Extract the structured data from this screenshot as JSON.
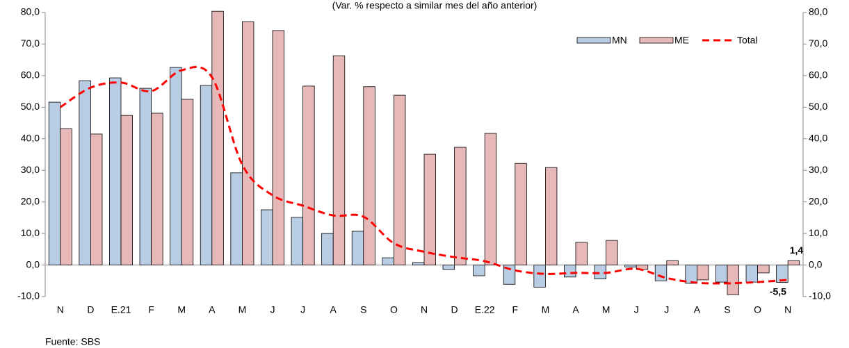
{
  "chart_data": {
    "type": "bar",
    "subtitle": "(Var. % respecto a similar mes del año anterior)",
    "categories": [
      "N",
      "D",
      "E.21",
      "F",
      "M",
      "A",
      "M",
      "J",
      "J",
      "A",
      "S",
      "O",
      "N",
      "D",
      "E.22",
      "F",
      "M",
      "A",
      "M",
      "J",
      "J",
      "A",
      "S",
      "O",
      "N"
    ],
    "series": [
      {
        "name": "MN",
        "type": "bar",
        "color": "#b8cce4",
        "values": [
          51.6,
          58.4,
          59.3,
          56.0,
          62.6,
          56.9,
          29.2,
          17.5,
          15.1,
          10.0,
          10.7,
          2.3,
          0.8,
          -1.4,
          -3.4,
          -6.1,
          -7.0,
          -3.8,
          -4.4,
          -0.6,
          -5.0,
          -5.8,
          -5.4,
          -5.4,
          -5.5
        ],
        "value_labels": [
          null,
          null,
          null,
          null,
          null,
          null,
          null,
          null,
          null,
          null,
          null,
          null,
          null,
          null,
          null,
          null,
          null,
          null,
          null,
          null,
          null,
          null,
          null,
          null,
          "-5,5"
        ]
      },
      {
        "name": "ME",
        "type": "bar",
        "color": "#e6b9b8",
        "values": [
          43.2,
          41.5,
          47.4,
          48.1,
          52.5,
          80.4,
          77.1,
          74.3,
          56.7,
          66.3,
          56.5,
          53.8,
          35.1,
          37.3,
          41.7,
          32.2,
          30.9,
          7.2,
          7.8,
          -1.4,
          1.4,
          -4.7,
          -9.4,
          -2.5,
          1.4
        ],
        "value_labels": [
          null,
          null,
          null,
          null,
          null,
          null,
          null,
          null,
          null,
          null,
          null,
          null,
          null,
          null,
          null,
          null,
          null,
          null,
          null,
          null,
          null,
          null,
          null,
          null,
          "1,4"
        ]
      },
      {
        "name": "Total",
        "type": "line",
        "color": "#ff0000",
        "values": [
          50.0,
          56.2,
          57.8,
          55.1,
          61.7,
          59.5,
          31.8,
          22.1,
          18.8,
          15.7,
          15.3,
          6.9,
          4.2,
          2.5,
          1.2,
          -1.7,
          -2.8,
          -2.5,
          -2.5,
          -1.2,
          -4.1,
          -5.6,
          -5.8,
          -5.4,
          -4.7
        ]
      }
    ],
    "ylim": [
      -10,
      80
    ],
    "yticks": [
      {
        "value": -10,
        "label": "-10,0"
      },
      {
        "value": 0,
        "label": "0,0"
      },
      {
        "value": 10,
        "label": "10,0"
      },
      {
        "value": 20,
        "label": "20,0"
      },
      {
        "value": 30,
        "label": "30,0"
      },
      {
        "value": 40,
        "label": "40,0"
      },
      {
        "value": 50,
        "label": "50,0"
      },
      {
        "value": 60,
        "label": "60,0"
      },
      {
        "value": 70,
        "label": "70,0"
      },
      {
        "value": 80,
        "label": "80,0"
      }
    ],
    "y2lim": [
      -10,
      80
    ],
    "y2ticks": [
      {
        "value": -10,
        "label": "-10,0"
      },
      {
        "value": 0,
        "label": "0,0"
      },
      {
        "value": 10,
        "label": "10,0"
      },
      {
        "value": 20,
        "label": "20,0"
      },
      {
        "value": 30,
        "label": "30,0"
      },
      {
        "value": 40,
        "label": "40,0"
      },
      {
        "value": 50,
        "label": "50,0"
      },
      {
        "value": 60,
        "label": "60,0"
      },
      {
        "value": 70,
        "label": "70,0"
      },
      {
        "value": 80,
        "label": "80,0"
      }
    ],
    "legend": "upper-right",
    "source": "Fuente: SBS"
  }
}
